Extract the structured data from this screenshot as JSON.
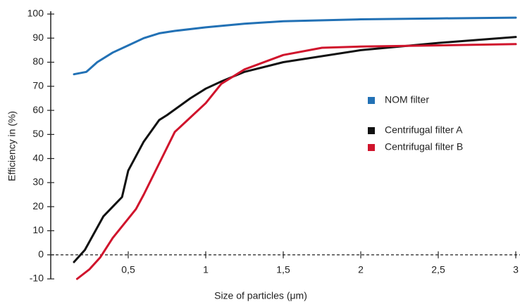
{
  "chart_data": {
    "type": "line",
    "xlabel": "Size of particles (μm)",
    "ylabel": "Efficiency in (%)",
    "xlim": [
      0,
      3
    ],
    "ylim": [
      -10,
      100
    ],
    "xticks": [
      {
        "value": 0.5,
        "label": "0,5"
      },
      1,
      {
        "value": 1.5,
        "label": "1,5"
      },
      2,
      {
        "value": 2.5,
        "label": "2,5"
      },
      3
    ],
    "yticks": [
      -10,
      0,
      10,
      20,
      30,
      40,
      50,
      60,
      70,
      80,
      90,
      100
    ],
    "legend": "right",
    "series": [
      {
        "name": "NOM filter",
        "color": "#2271b5",
        "x": [
          0.15,
          0.23,
          0.3,
          0.4,
          0.5,
          0.6,
          0.7,
          0.8,
          1.0,
          1.25,
          1.5,
          2.0,
          2.5,
          3.0
        ],
        "values": [
          75,
          76,
          80,
          84,
          87,
          90,
          92,
          93,
          94.5,
          96,
          97,
          97.8,
          98.2,
          98.5
        ]
      },
      {
        "name": "Centrifugal filter A",
        "color": "#111111",
        "x": [
          0.15,
          0.22,
          0.34,
          0.4,
          0.46,
          0.5,
          0.6,
          0.7,
          0.75,
          0.9,
          1.0,
          1.1,
          1.25,
          1.5,
          2.0,
          2.5,
          3.0
        ],
        "values": [
          -3,
          2,
          16,
          20,
          24,
          35,
          47,
          56,
          58,
          65,
          69,
          72,
          76,
          80,
          85,
          88,
          90.5
        ]
      },
      {
        "name": "Centrifugal filter B",
        "color": "#d0142c",
        "x": [
          0.17,
          0.25,
          0.32,
          0.4,
          0.5,
          0.55,
          0.6,
          0.7,
          0.8,
          0.9,
          1.0,
          1.1,
          1.25,
          1.5,
          1.75,
          2.0,
          2.5,
          3.0
        ],
        "values": [
          -10,
          -6,
          -1,
          7,
          15,
          19,
          25,
          38,
          51,
          57,
          63,
          71,
          77,
          83,
          86,
          86.5,
          87,
          87.5
        ]
      }
    ]
  }
}
